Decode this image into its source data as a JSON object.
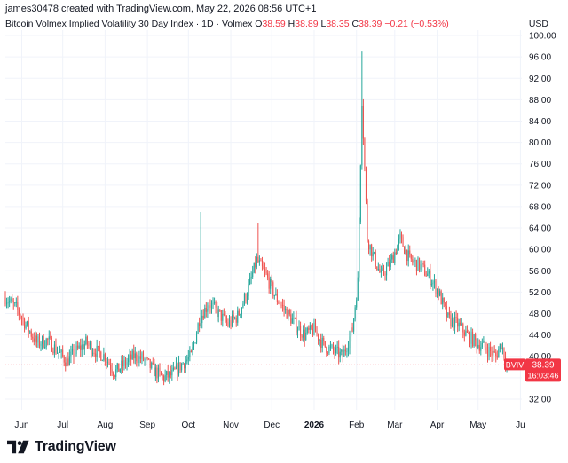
{
  "header": {
    "credit": "james30478 created with TradingView.com, May 22, 2026 08:56 UTC+1",
    "title": "Bitcoin Volmex Implied Volatility 30 Day Index · 1D · Volmex",
    "o_label": "O",
    "o_value": "38.59",
    "h_label": "H",
    "h_value": "38.89",
    "l_label": "L",
    "l_value": "38.35",
    "c_label": "C",
    "c_value": "38.39",
    "change": "−0.21 (−0.53%)"
  },
  "currency": "USD",
  "brand": {
    "name": "TradingView",
    "icon": "tradingview-logo-icon"
  },
  "colors": {
    "up": "#26a69a",
    "down": "#ef5350",
    "price_line": "#f23645",
    "grid": "#f0f3fa"
  },
  "price_badge": {
    "symbol": "BVIV",
    "price": "38.39",
    "countdown": "16:03:46"
  },
  "chart_data": {
    "type": "candlestick",
    "title": "Bitcoin Volmex Implied Volatility 30 Day Index · 1D · Volmex",
    "ylim": [
      30,
      101
    ],
    "y_ticks": [
      32,
      36,
      40,
      44,
      48,
      52,
      56,
      60,
      64,
      68,
      72,
      76,
      80,
      84,
      88,
      92,
      96,
      100
    ],
    "y_tick_labels": [
      "32.00",
      "36.00",
      "40.00",
      "44.00",
      "48.00",
      "52.00",
      "56.00",
      "60.00",
      "64.00",
      "68.00",
      "72.00",
      "76.00",
      "80.00",
      "84.00",
      "88.00",
      "92.00",
      "96.00",
      "100.00"
    ],
    "x_ticks": [
      {
        "label": "Jun",
        "date": "2025-06-01"
      },
      {
        "label": "Jul",
        "date": "2025-07-01"
      },
      {
        "label": "Aug",
        "date": "2025-08-01"
      },
      {
        "label": "Sep",
        "date": "2025-09-01"
      },
      {
        "label": "Oct",
        "date": "2025-10-01"
      },
      {
        "label": "Nov",
        "date": "2025-11-01"
      },
      {
        "label": "Dec",
        "date": "2025-12-01"
      },
      {
        "label": "2026",
        "date": "2026-01-01",
        "bold": true
      },
      {
        "label": "Feb",
        "date": "2026-02-01"
      },
      {
        "label": "Mar",
        "date": "2026-03-01"
      },
      {
        "label": "Apr",
        "date": "2026-04-01"
      },
      {
        "label": "May",
        "date": "2026-05-01"
      },
      {
        "label": "Ju",
        "date": "2026-06-01"
      }
    ],
    "x_range": [
      "2025-05-20",
      "2026-06-02"
    ],
    "grid": true,
    "last_price": 38.39,
    "closes": [
      {
        "date": "2025-05-20",
        "close": 51.0
      },
      {
        "date": "2025-05-28",
        "close": 49.0
      },
      {
        "date": "2025-06-05",
        "close": 45.5
      },
      {
        "date": "2025-06-12",
        "close": 42.5
      },
      {
        "date": "2025-06-20",
        "close": 43.0
      },
      {
        "date": "2025-06-27",
        "close": 41.0
      },
      {
        "date": "2025-07-04",
        "close": 39.0
      },
      {
        "date": "2025-07-11",
        "close": 41.0
      },
      {
        "date": "2025-07-18",
        "close": 42.5
      },
      {
        "date": "2025-07-25",
        "close": 41.0
      },
      {
        "date": "2025-08-01",
        "close": 40.0
      },
      {
        "date": "2025-08-08",
        "close": 37.0
      },
      {
        "date": "2025-08-15",
        "close": 38.5
      },
      {
        "date": "2025-08-22",
        "close": 40.0
      },
      {
        "date": "2025-08-29",
        "close": 39.5
      },
      {
        "date": "2025-09-05",
        "close": 37.5
      },
      {
        "date": "2025-09-12",
        "close": 36.0
      },
      {
        "date": "2025-09-19",
        "close": 36.5
      },
      {
        "date": "2025-09-26",
        "close": 38.5
      },
      {
        "date": "2025-10-03",
        "close": 40.0
      },
      {
        "date": "2025-10-09",
        "close": 47.0
      },
      {
        "date": "2025-10-16",
        "close": 50.0
      },
      {
        "date": "2025-10-23",
        "close": 48.0
      },
      {
        "date": "2025-10-30",
        "close": 46.0
      },
      {
        "date": "2025-11-06",
        "close": 47.5
      },
      {
        "date": "2025-11-13",
        "close": 52.0
      },
      {
        "date": "2025-11-20",
        "close": 58.0
      },
      {
        "date": "2025-11-27",
        "close": 55.0
      },
      {
        "date": "2025-12-04",
        "close": 51.0
      },
      {
        "date": "2025-12-11",
        "close": 48.5
      },
      {
        "date": "2025-12-18",
        "close": 46.0
      },
      {
        "date": "2025-12-25",
        "close": 44.0
      },
      {
        "date": "2026-01-01",
        "close": 45.0
      },
      {
        "date": "2026-01-08",
        "close": 42.0
      },
      {
        "date": "2026-01-15",
        "close": 41.0
      },
      {
        "date": "2026-01-22",
        "close": 40.0
      },
      {
        "date": "2026-01-29",
        "close": 45.0
      },
      {
        "date": "2026-02-02",
        "close": 54.0
      },
      {
        "date": "2026-02-05",
        "close": 88.0
      },
      {
        "date": "2026-02-09",
        "close": 62.0
      },
      {
        "date": "2026-02-13",
        "close": 59.0
      },
      {
        "date": "2026-02-19",
        "close": 55.0
      },
      {
        "date": "2026-02-26",
        "close": 57.5
      },
      {
        "date": "2026-03-05",
        "close": 62.0
      },
      {
        "date": "2026-03-12",
        "close": 58.0
      },
      {
        "date": "2026-03-19",
        "close": 57.0
      },
      {
        "date": "2026-03-26",
        "close": 55.0
      },
      {
        "date": "2026-04-02",
        "close": 52.0
      },
      {
        "date": "2026-04-09",
        "close": 47.0
      },
      {
        "date": "2026-04-16",
        "close": 46.0
      },
      {
        "date": "2026-04-23",
        "close": 44.0
      },
      {
        "date": "2026-04-30",
        "close": 42.5
      },
      {
        "date": "2026-05-07",
        "close": 41.5
      },
      {
        "date": "2026-05-14",
        "close": 40.0
      },
      {
        "date": "2026-05-18",
        "close": 42.5
      },
      {
        "date": "2026-05-22",
        "close": 38.39
      }
    ],
    "spikes": [
      {
        "date": "2025-10-10",
        "high": 67.0
      },
      {
        "date": "2025-11-21",
        "high": 65.0
      },
      {
        "date": "2026-02-05",
        "high": 97.0
      }
    ]
  }
}
